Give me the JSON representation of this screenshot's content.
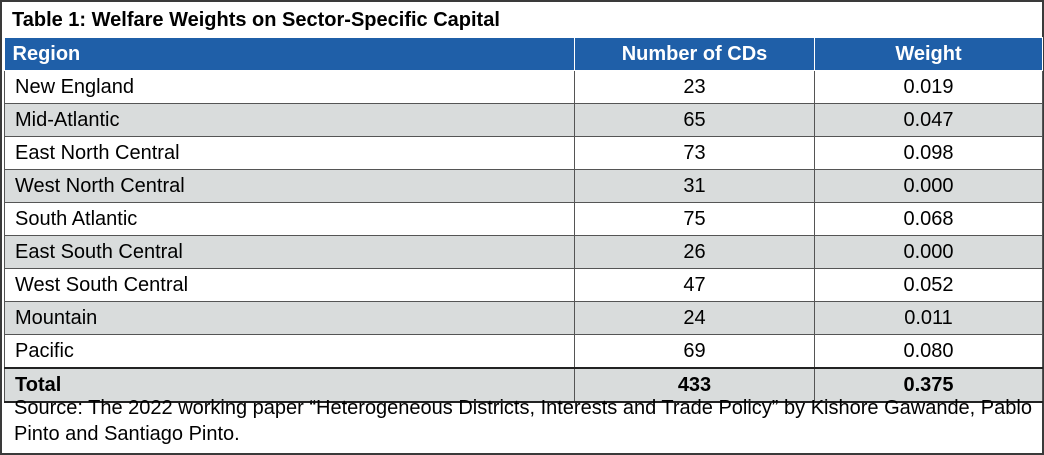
{
  "title": "Table 1: Welfare Weights on Sector-Specific Capital",
  "headers": {
    "region": "Region",
    "cds": "Number of CDs",
    "weight": "Weight"
  },
  "rows": [
    {
      "region": "New England",
      "cds": "23",
      "weight": "0.019"
    },
    {
      "region": "Mid-Atlantic",
      "cds": "65",
      "weight": "0.047"
    },
    {
      "region": "East North Central",
      "cds": "73",
      "weight": "0.098"
    },
    {
      "region": "West North Central",
      "cds": "31",
      "weight": "0.000"
    },
    {
      "region": "South Atlantic",
      "cds": "75",
      "weight": "0.068"
    },
    {
      "region": "East South Central",
      "cds": "26",
      "weight": "0.000"
    },
    {
      "region": "West South Central",
      "cds": "47",
      "weight": "0.052"
    },
    {
      "region": "Mountain",
      "cds": "24",
      "weight": "0.011"
    },
    {
      "region": "Pacific",
      "cds": "69",
      "weight": "0.080"
    }
  ],
  "total": {
    "region": "Total",
    "cds": "433",
    "weight": "0.375"
  },
  "source": "Source: The 2022 working paper “Heterogeneous Districts, Interests and Trade Policy” by Kishore Gawande, Pablo Pinto and Santiago Pinto.",
  "colors": {
    "header_bg": "#1f5fa8",
    "alt_row_bg": "#d9dcdc",
    "border": "#3a3a3a"
  }
}
